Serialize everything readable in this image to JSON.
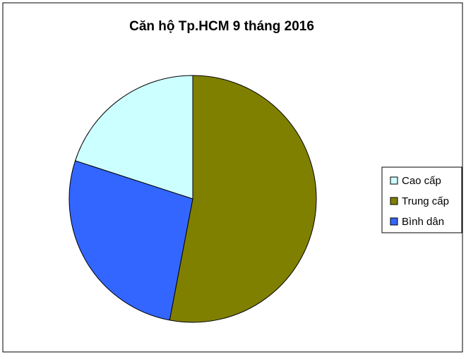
{
  "chart_data": {
    "type": "pie",
    "title": "Căn hộ Tp.HCM 9 tháng 2016",
    "categories": [
      "Cao cấp",
      "Trung cấp",
      "Bình dân"
    ],
    "values": [
      20,
      53,
      27
    ],
    "colors": [
      "#ccffff",
      "#808000",
      "#3366ff"
    ]
  }
}
